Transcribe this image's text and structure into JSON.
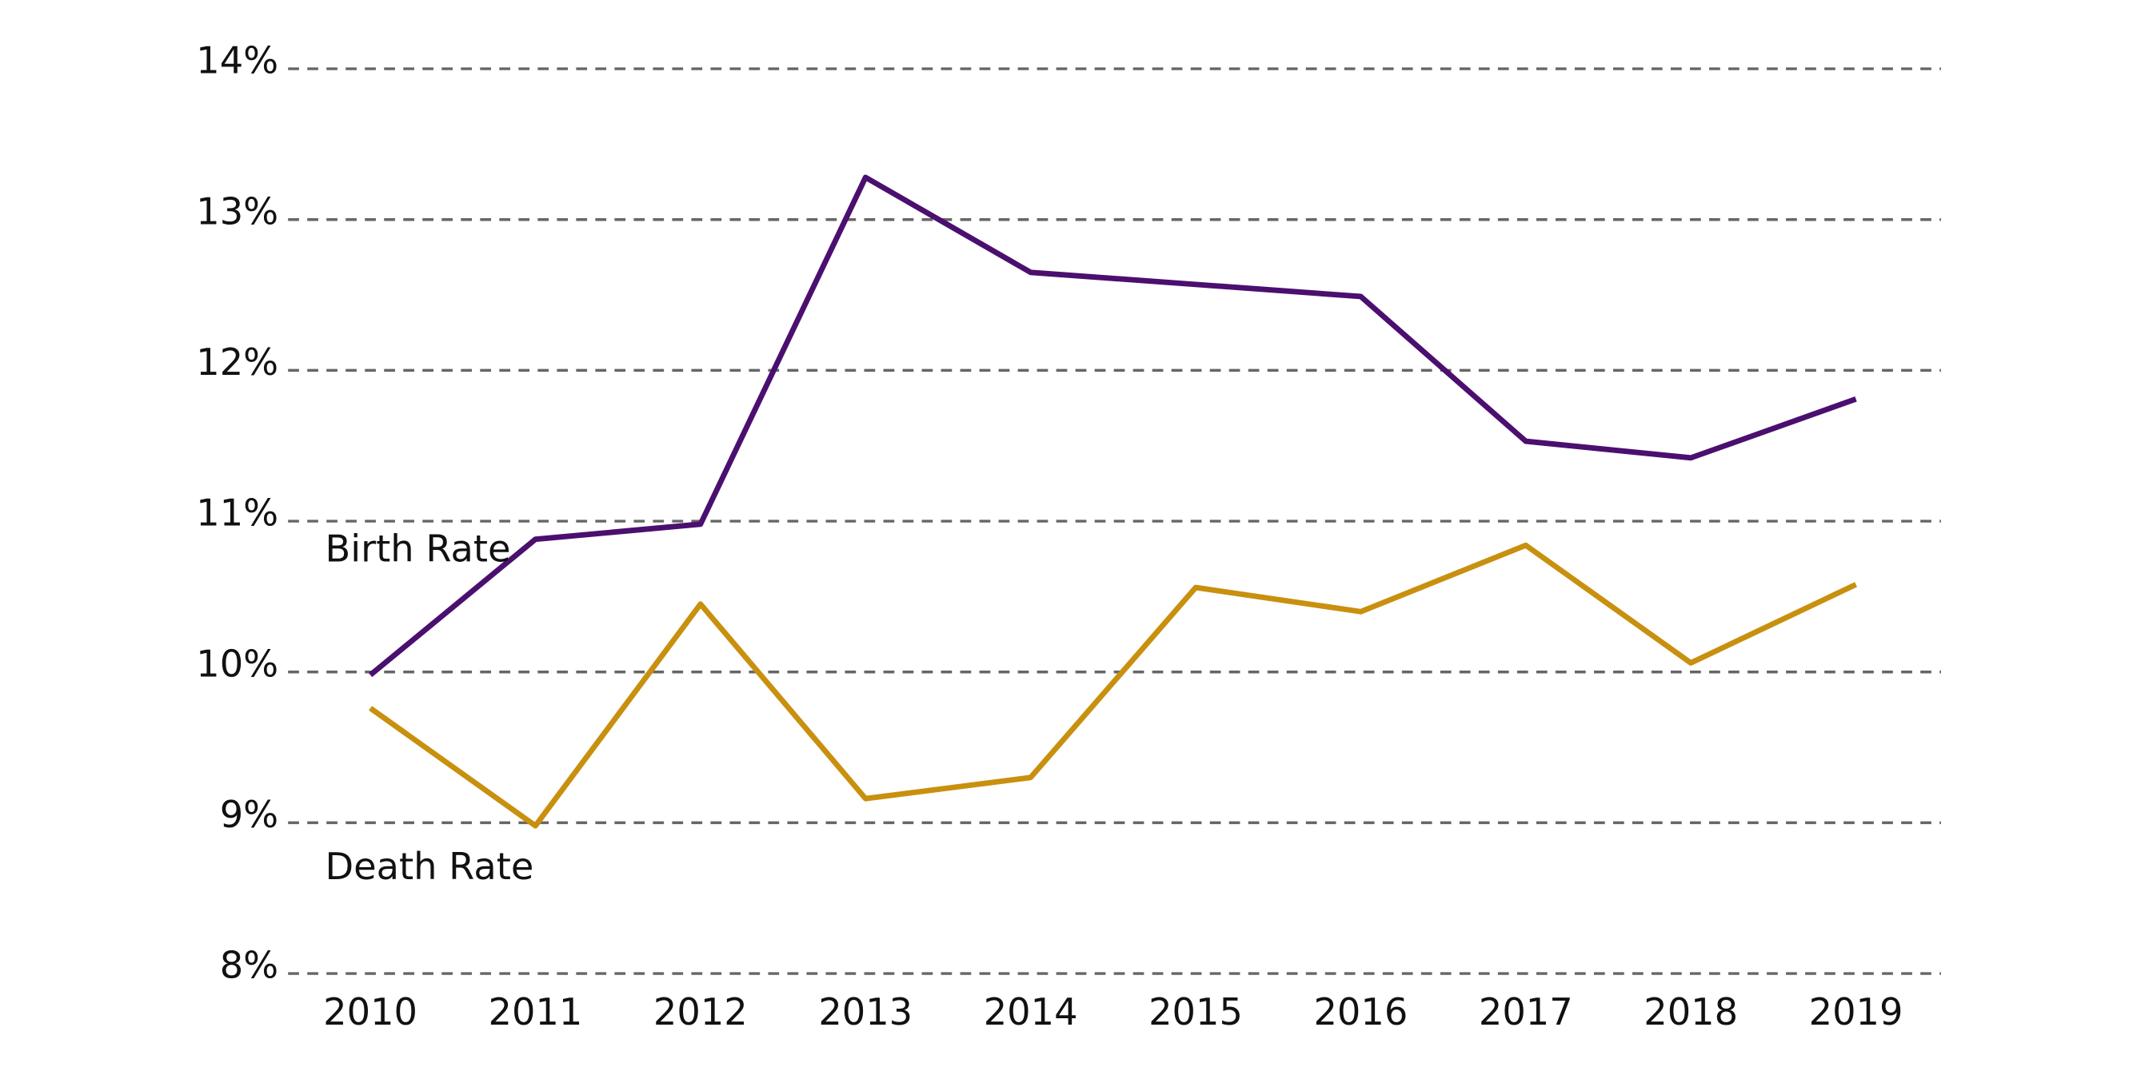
{
  "chart_data": {
    "type": "line",
    "categories": [
      "2010",
      "2011",
      "2012",
      "2013",
      "2014",
      "2015",
      "2016",
      "2017",
      "2018",
      "2019"
    ],
    "series": [
      {
        "name": "Birth Rate",
        "color": "#4b0f6f",
        "values": [
          9.98,
          10.88,
          10.98,
          13.28,
          12.65,
          12.57,
          12.49,
          11.53,
          11.42,
          11.81
        ]
      },
      {
        "name": "Death Rate",
        "color": "#c8900e",
        "values": [
          9.76,
          8.98,
          10.45,
          9.16,
          9.3,
          10.56,
          10.4,
          10.84,
          10.06,
          10.58
        ]
      }
    ],
    "ylim": [
      8,
      14
    ],
    "yticks": [
      {
        "value": 8,
        "label": "8%"
      },
      {
        "value": 9,
        "label": "9%"
      },
      {
        "value": 10,
        "label": "10%"
      },
      {
        "value": 11,
        "label": "11%"
      },
      {
        "value": 12,
        "label": "12%"
      },
      {
        "value": 13,
        "label": "13%"
      },
      {
        "value": 14,
        "label": "14%"
      }
    ],
    "grid": true
  }
}
